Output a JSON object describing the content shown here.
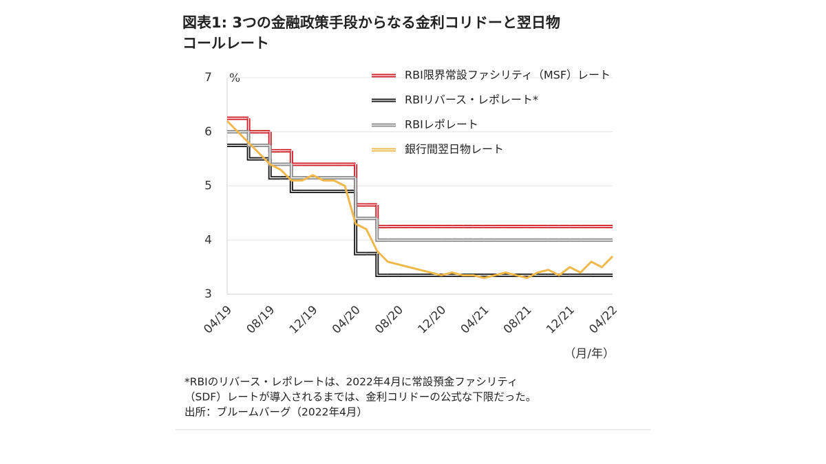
{
  "chart_data": {
    "type": "line",
    "title": [
      "図表1: 3つの金融政策手段からなる金利コリドーと翌日物",
      "コールレート"
    ],
    "y_unit": "%",
    "x_unit": "（月/年）",
    "x": [
      "04/19",
      "05/19",
      "06/19",
      "07/19",
      "08/19",
      "09/19",
      "10/19",
      "11/19",
      "12/19",
      "01/20",
      "02/20",
      "03/20",
      "04/20",
      "05/20",
      "06/20",
      "07/20",
      "08/20",
      "09/20",
      "10/20",
      "11/20",
      "12/20",
      "01/21",
      "02/21",
      "03/21",
      "04/21",
      "05/21",
      "06/21",
      "07/21",
      "08/21",
      "09/21",
      "10/21",
      "11/21",
      "12/21",
      "01/22",
      "02/22",
      "03/22",
      "04/22"
    ],
    "xticks": [
      "04/19",
      "08/19",
      "12/19",
      "04/20",
      "08/20",
      "12/20",
      "04/21",
      "08/21",
      "12/21",
      "04/22"
    ],
    "ylim": [
      3,
      7
    ],
    "yticks": [
      3,
      4,
      5,
      6,
      7
    ],
    "grid": true,
    "series": [
      {
        "name": "RBI限界常設ファシリティ（MSF）レート",
        "color": "#d0202a",
        "step": true,
        "values": [
          6.25,
          6.25,
          6.0,
          6.0,
          5.65,
          5.65,
          5.4,
          5.4,
          5.4,
          5.4,
          5.4,
          5.4,
          4.65,
          4.65,
          4.25,
          4.25,
          4.25,
          4.25,
          4.25,
          4.25,
          4.25,
          4.25,
          4.25,
          4.25,
          4.25,
          4.25,
          4.25,
          4.25,
          4.25,
          4.25,
          4.25,
          4.25,
          4.25,
          4.25,
          4.25,
          4.25,
          4.25
        ]
      },
      {
        "name": "RBIリバース・レポレート*",
        "color": "#1a1a1a",
        "step": true,
        "values": [
          5.75,
          5.75,
          5.5,
          5.5,
          5.15,
          5.15,
          4.9,
          4.9,
          4.9,
          4.9,
          4.9,
          4.9,
          3.75,
          3.75,
          3.35,
          3.35,
          3.35,
          3.35,
          3.35,
          3.35,
          3.35,
          3.35,
          3.35,
          3.35,
          3.35,
          3.35,
          3.35,
          3.35,
          3.35,
          3.35,
          3.35,
          3.35,
          3.35,
          3.35,
          3.35,
          3.35,
          3.35
        ]
      },
      {
        "name": "RBIレポレート",
        "color": "#8c8c8c",
        "step": true,
        "values": [
          6.0,
          6.0,
          5.75,
          5.75,
          5.4,
          5.4,
          5.15,
          5.15,
          5.15,
          5.15,
          5.15,
          5.15,
          4.4,
          4.4,
          4.0,
          4.0,
          4.0,
          4.0,
          4.0,
          4.0,
          4.0,
          4.0,
          4.0,
          4.0,
          4.0,
          4.0,
          4.0,
          4.0,
          4.0,
          4.0,
          4.0,
          4.0,
          4.0,
          4.0,
          4.0,
          4.0,
          4.0
        ]
      },
      {
        "name": "銀行間翌日物レート",
        "color": "#f0b84a",
        "step": false,
        "values": [
          6.2,
          6.0,
          5.8,
          5.6,
          5.4,
          5.3,
          5.1,
          5.1,
          5.2,
          5.1,
          5.1,
          5.0,
          4.3,
          4.2,
          3.8,
          3.6,
          3.55,
          3.5,
          3.45,
          3.4,
          3.35,
          3.4,
          3.35,
          3.35,
          3.3,
          3.35,
          3.4,
          3.35,
          3.3,
          3.4,
          3.45,
          3.35,
          3.5,
          3.4,
          3.6,
          3.5,
          3.7
        ]
      }
    ],
    "notes": [
      "*RBIのリバース・レポレートは、2022年4月に常設預金ファシリティ",
      "（SDF）レートが導入されるまでは、金利コリドーの公式な下限だった。",
      "出所：ブルームバーグ（2022年4月）"
    ]
  }
}
